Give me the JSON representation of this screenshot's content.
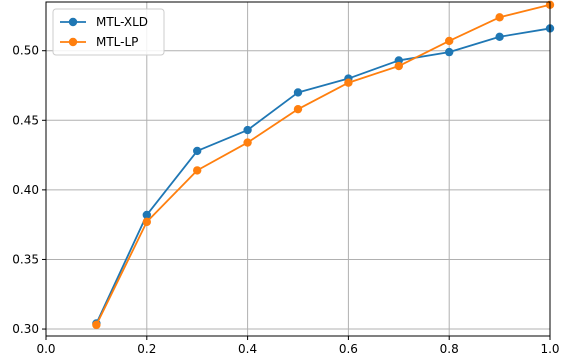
{
  "chart_data": {
    "type": "line",
    "title": "",
    "xlabel": "",
    "ylabel": "",
    "xlim": [
      0.0,
      1.0
    ],
    "ylim": [
      0.295,
      0.535
    ],
    "x_ticks": [
      "0.0",
      "0.2",
      "0.4",
      "0.6",
      "0.8",
      "1.0"
    ],
    "y_ticks": [
      "0.30",
      "0.35",
      "0.40",
      "0.45",
      "0.50"
    ],
    "grid": true,
    "legend_position": "top-left",
    "x": [
      0.1,
      0.2,
      0.3,
      0.4,
      0.5,
      0.6,
      0.7,
      0.8,
      0.9,
      1.0
    ],
    "series": [
      {
        "name": "MTL-XLD",
        "color": "#1f77b4",
        "marker": "circle",
        "values": [
          0.304,
          0.382,
          0.428,
          0.443,
          0.47,
          0.48,
          0.493,
          0.499,
          0.51,
          0.516
        ]
      },
      {
        "name": "MTL-LP",
        "color": "#ff7f0e",
        "marker": "circle",
        "values": [
          0.303,
          0.377,
          0.414,
          0.434,
          0.458,
          0.477,
          0.489,
          0.507,
          0.524,
          0.533
        ]
      }
    ]
  }
}
